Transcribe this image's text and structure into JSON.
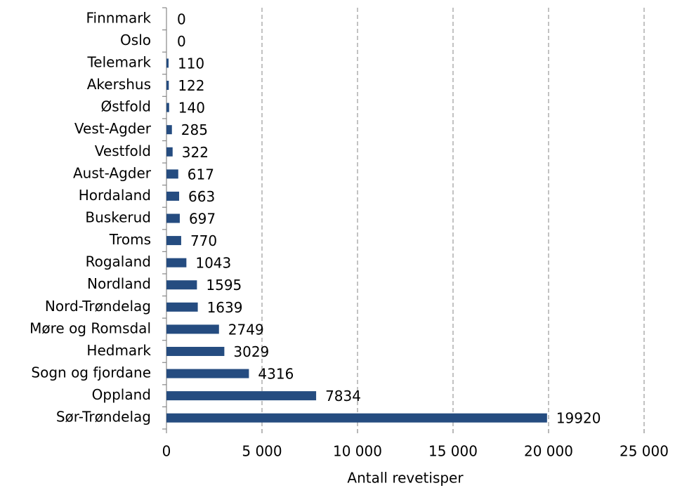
{
  "chart_data": {
    "type": "bar",
    "orientation": "horizontal",
    "categories": [
      "Finnmark",
      "Oslo",
      "Telemark",
      "Akershus",
      "Østfold",
      "Vest-Agder",
      "Vestfold",
      "Aust-Agder",
      "Hordaland",
      "Buskerud",
      "Troms",
      "Rogaland",
      "Nordland",
      "Nord-Trøndelag",
      "Møre og Romsdal",
      "Hedmark",
      "Sogn og fjordane",
      "Oppland",
      "Sør-Trøndelag"
    ],
    "values": [
      0,
      0,
      110,
      122,
      140,
      285,
      322,
      617,
      663,
      697,
      770,
      1043,
      1595,
      1639,
      2749,
      3029,
      4316,
      7834,
      19920
    ],
    "color": "#254c80",
    "xlabel": "Antall revetisper",
    "xlim": [
      0,
      25000
    ],
    "xticks": [
      0,
      {
        "value": 5000,
        "label": "5 000"
      },
      {
        "value": 10000,
        "label": "10 000"
      },
      {
        "value": 15000,
        "label": "15 000"
      },
      {
        "value": 20000,
        "label": "20 000"
      },
      {
        "value": 25000,
        "label": "25 000"
      }
    ],
    "grid": true
  }
}
